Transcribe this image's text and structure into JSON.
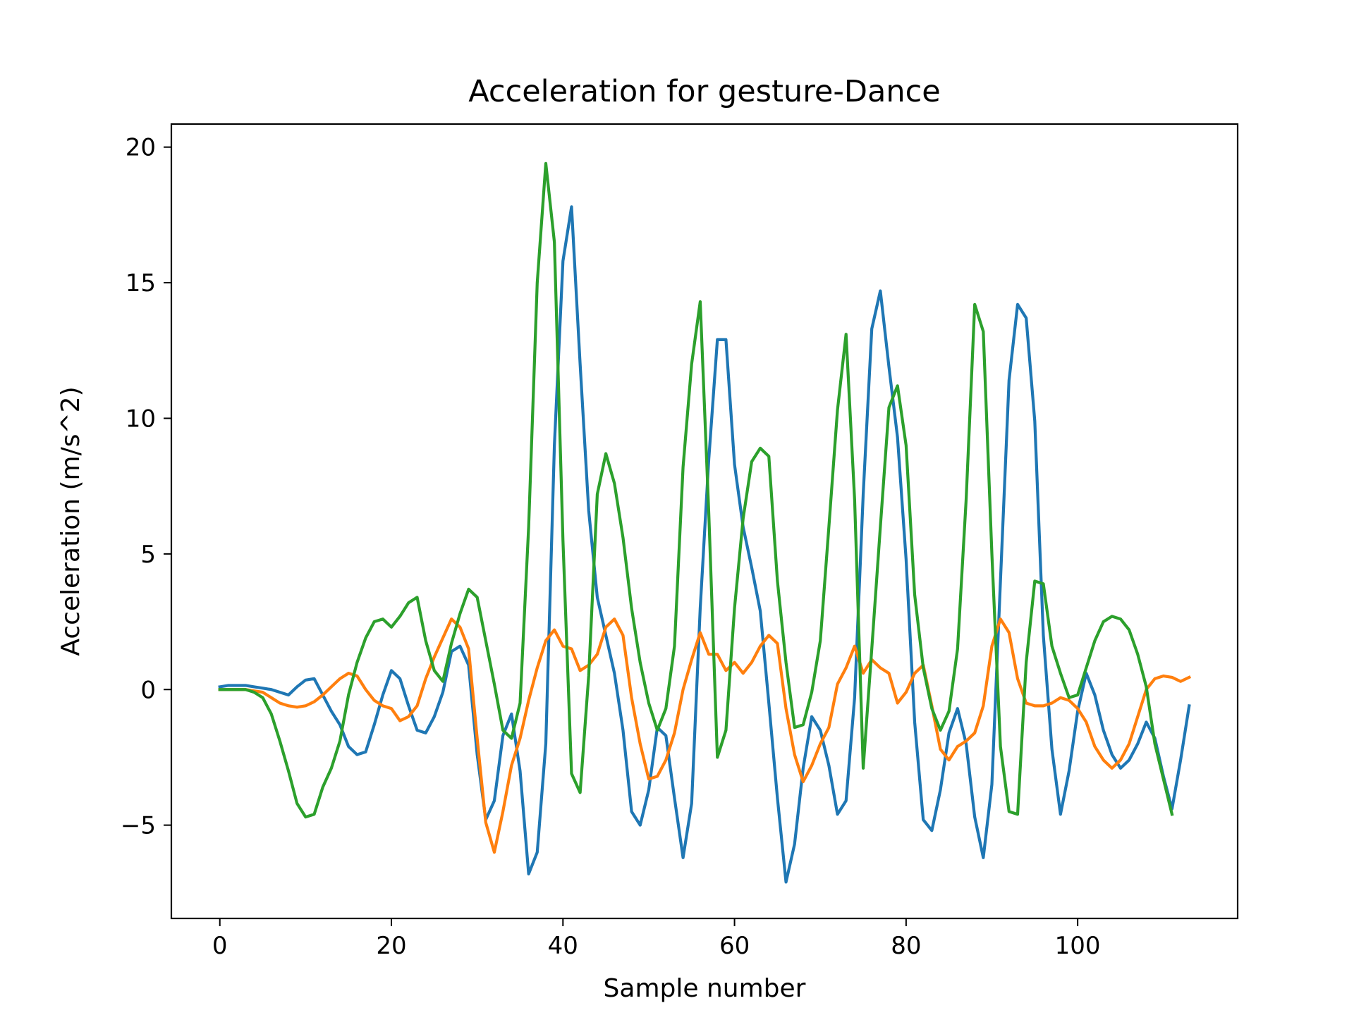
{
  "chart_data": {
    "type": "line",
    "title": "Acceleration for gesture-Dance",
    "xlabel": "Sample number",
    "ylabel": "Acceleration (m/s^2)",
    "xlim": [
      -5.65,
      118.65
    ],
    "ylim": [
      -8.44,
      20.85
    ],
    "xticks": [
      0,
      20,
      40,
      60,
      80,
      100
    ],
    "yticks": [
      -5,
      0,
      5,
      10,
      15,
      20
    ],
    "ytick_labels": [
      "−5",
      "0",
      "5",
      "10",
      "15",
      "20"
    ],
    "grid": false,
    "legend": "none",
    "series": [
      {
        "color": "#1f77b4",
        "values": [
          0.1,
          0.15,
          0.15,
          0.15,
          0.1,
          0.05,
          0.0,
          -0.1,
          -0.2,
          0.1,
          0.35,
          0.4,
          -0.2,
          -0.8,
          -1.3,
          -2.1,
          -2.4,
          -2.3,
          -1.3,
          -0.2,
          0.7,
          0.4,
          -0.6,
          -1.5,
          -1.6,
          -1.0,
          -0.1,
          1.4,
          1.6,
          0.9,
          -2.4,
          -4.8,
          -4.1,
          -1.7,
          -0.9,
          -3.0,
          -6.8,
          -6.0,
          -2.0,
          9.0,
          15.8,
          17.8,
          12.0,
          6.6,
          3.4,
          2.0,
          0.6,
          -1.5,
          -4.5,
          -5.0,
          -3.7,
          -1.4,
          -1.7,
          -4.0,
          -6.2,
          -4.2,
          3.0,
          8.5,
          12.9,
          12.9,
          8.3,
          6.0,
          4.5,
          2.9,
          -0.5,
          -4.0,
          -7.1,
          -5.7,
          -2.9,
          -1.0,
          -1.5,
          -2.8,
          -4.6,
          -4.1,
          -0.3,
          7.2,
          13.3,
          14.7,
          11.9,
          9.3,
          4.8,
          -1.2,
          -4.8,
          -5.2,
          -3.7,
          -1.6,
          -0.7,
          -2.0,
          -4.7,
          -6.2,
          -3.5,
          4.0,
          11.4,
          14.2,
          13.7,
          9.9,
          2.0,
          -2.2,
          -4.6,
          -3.0,
          -0.8,
          0.6,
          -0.2,
          -1.5,
          -2.4,
          -2.9,
          -2.6,
          -2.0,
          -1.2,
          -1.8,
          -3.2,
          -4.4,
          -2.6,
          -0.6
        ]
      },
      {
        "color": "#ff7f0e",
        "values": [
          0.0,
          0.0,
          0.0,
          0.0,
          -0.05,
          -0.1,
          -0.3,
          -0.5,
          -0.6,
          -0.65,
          -0.6,
          -0.45,
          -0.2,
          0.1,
          0.4,
          0.6,
          0.5,
          0.0,
          -0.4,
          -0.6,
          -0.7,
          -1.15,
          -1.0,
          -0.6,
          0.4,
          1.2,
          1.9,
          2.6,
          2.3,
          1.5,
          -1.8,
          -4.9,
          -6.0,
          -4.5,
          -2.8,
          -1.8,
          -0.4,
          0.8,
          1.8,
          2.2,
          1.6,
          1.5,
          0.7,
          0.9,
          1.3,
          2.3,
          2.6,
          2.0,
          -0.3,
          -2.0,
          -3.3,
          -3.2,
          -2.6,
          -1.6,
          0.0,
          1.1,
          2.1,
          1.3,
          1.3,
          0.7,
          1.0,
          0.6,
          1.0,
          1.6,
          2.0,
          1.7,
          -0.7,
          -2.4,
          -3.4,
          -2.8,
          -2.0,
          -1.4,
          0.2,
          0.8,
          1.6,
          0.6,
          1.1,
          0.8,
          0.6,
          -0.5,
          -0.1,
          0.6,
          0.9,
          -0.6,
          -2.2,
          -2.6,
          -2.1,
          -1.9,
          -1.6,
          -0.6,
          1.6,
          2.6,
          2.1,
          0.4,
          -0.5,
          -0.6,
          -0.6,
          -0.5,
          -0.3,
          -0.4,
          -0.7,
          -1.2,
          -2.1,
          -2.6,
          -2.9,
          -2.6,
          -2.0,
          -1.0,
          0.0,
          0.4,
          0.5,
          0.45,
          0.3,
          0.45
        ]
      },
      {
        "color": "#2ca02c",
        "values": [
          0.0,
          0.0,
          0.0,
          0.0,
          -0.1,
          -0.3,
          -0.9,
          -1.9,
          -3.0,
          -4.2,
          -4.7,
          -4.6,
          -3.6,
          -2.9,
          -1.9,
          -0.2,
          1.0,
          1.9,
          2.5,
          2.6,
          2.3,
          2.7,
          3.2,
          3.4,
          1.8,
          0.7,
          0.3,
          1.7,
          2.8,
          3.7,
          3.4,
          1.8,
          0.2,
          -1.5,
          -1.8,
          -0.5,
          6.0,
          15.0,
          19.4,
          16.5,
          5.5,
          -3.1,
          -3.8,
          0.5,
          7.2,
          8.7,
          7.6,
          5.6,
          3.0,
          1.0,
          -0.5,
          -1.5,
          -0.7,
          1.6,
          8.2,
          12.0,
          14.3,
          6.5,
          -2.5,
          -1.5,
          3.0,
          6.3,
          8.4,
          8.9,
          8.6,
          4.0,
          1.0,
          -1.4,
          -1.3,
          -0.1,
          1.8,
          6.0,
          10.3,
          13.1,
          7.0,
          -2.9,
          1.5,
          6.0,
          10.4,
          11.2,
          9.0,
          3.5,
          0.8,
          -0.7,
          -1.5,
          -0.8,
          1.5,
          7.0,
          14.2,
          13.2,
          5.0,
          -2.1,
          -4.5,
          -4.6,
          1.0,
          4.0,
          3.9,
          1.6,
          0.6,
          -0.3,
          -0.2,
          0.8,
          1.8,
          2.5,
          2.7,
          2.6,
          2.2,
          1.3,
          0.1,
          -2.0,
          -3.3,
          -4.6
        ]
      }
    ]
  }
}
